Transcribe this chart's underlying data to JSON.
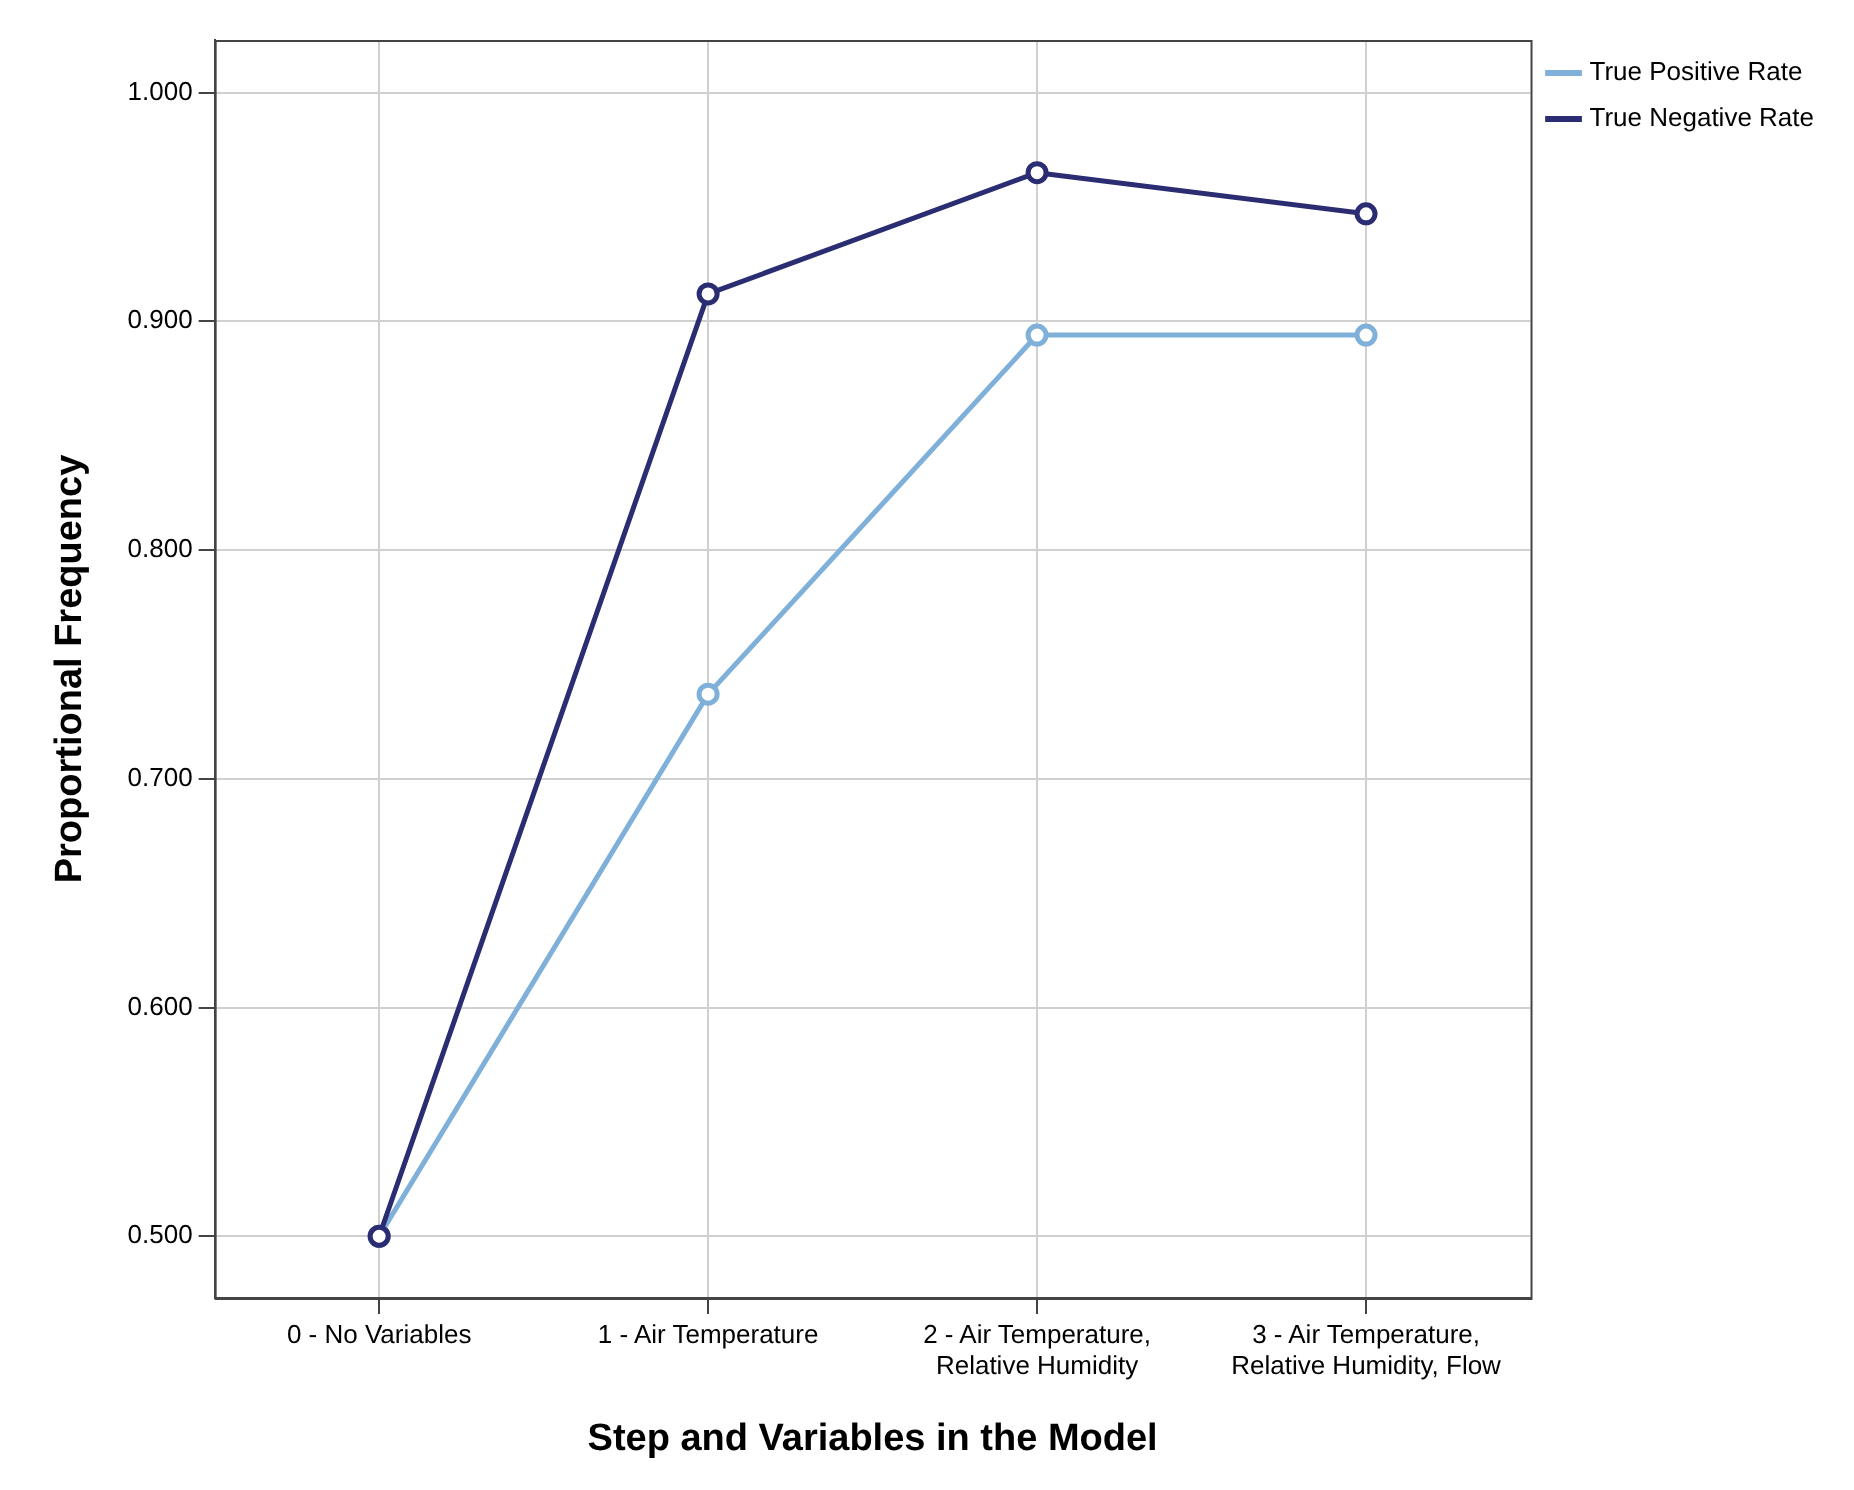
{
  "chart_data": {
    "type": "line",
    "xlabel": "Step and Variables in the Model",
    "ylabel": "Proportional Frequency",
    "categories": [
      "0 - No Variables",
      "1 - Air Temperature",
      "2 - Air Temperature, Relative Humidity",
      "3 - Air Temperature, Relative Humidity, Flow"
    ],
    "series": [
      {
        "name": "True Positive Rate",
        "color": "#7eb0d9",
        "values": [
          0.5,
          0.737,
          0.894,
          0.894
        ]
      },
      {
        "name": "True Negative Rate",
        "color": "#2b2d72",
        "values": [
          0.5,
          0.912,
          0.965,
          0.947
        ]
      }
    ],
    "ylim": [
      0.473,
      1.023
    ],
    "yticks": [
      {
        "value": 0.5,
        "label": "0.500"
      },
      {
        "value": 0.6,
        "label": "0.600"
      },
      {
        "value": 0.7,
        "label": "0.700"
      },
      {
        "value": 0.8,
        "label": "0.800"
      },
      {
        "value": 0.9,
        "label": "0.900"
      },
      {
        "value": 1.0,
        "label": "1.000"
      }
    ],
    "grid": true,
    "legend": "top right",
    "marker": "circle",
    "line_style": "solid"
  }
}
